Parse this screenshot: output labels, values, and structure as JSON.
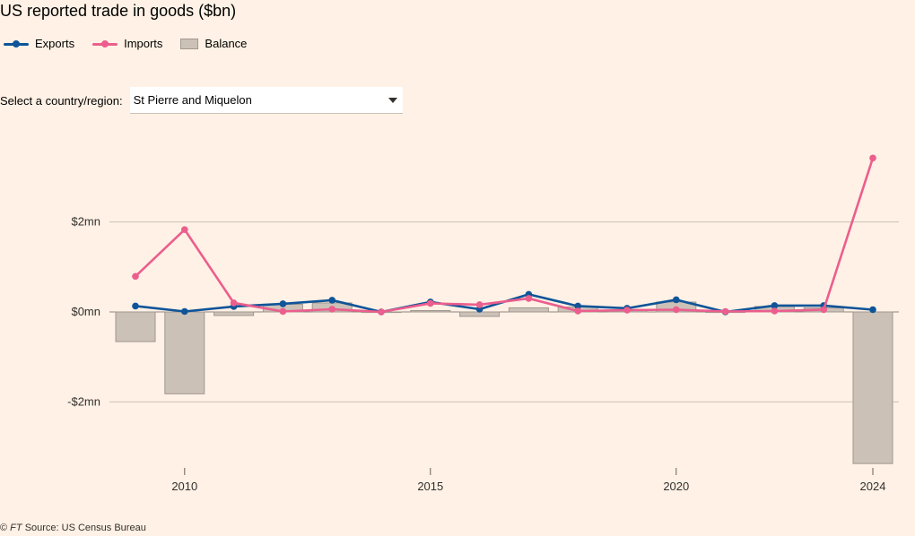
{
  "title": "US reported trade in goods ($bn)",
  "legend": {
    "exports": "Exports",
    "imports": "Imports",
    "balance": "Balance"
  },
  "selector": {
    "label": "Select a country/region:",
    "value": "St Pierre and Miquelon"
  },
  "footer": {
    "copyright": "©",
    "publisher": "FT",
    "source": "Source: US Census Bureau"
  },
  "colors": {
    "exports": "#0f5499",
    "imports": "#eb5e8d",
    "balance_fill": "#ccc1b7",
    "balance_stroke": "#a09890",
    "grid": "#ccc1b7"
  },
  "chart_data": {
    "type": "bar",
    "title": "US reported trade in goods ($bn)",
    "x": [
      2009,
      2010,
      2011,
      2012,
      2013,
      2014,
      2015,
      2016,
      2017,
      2018,
      2019,
      2020,
      2021,
      2022,
      2023,
      2024
    ],
    "xticks": [
      2010,
      2015,
      2020,
      2024
    ],
    "yticks": [
      {
        "value": 2,
        "label": "$2mn"
      },
      {
        "value": 0,
        "label": "$0mn"
      },
      {
        "value": -2,
        "label": "-$2mn"
      }
    ],
    "ylim": [
      -3.4,
      3.4
    ],
    "grid": true,
    "legend_position": "top-left",
    "series": [
      {
        "name": "Exports",
        "type": "line",
        "values": [
          0.13,
          0.01,
          0.12,
          0.18,
          0.26,
          0.0,
          0.22,
          0.06,
          0.39,
          0.13,
          0.08,
          0.27,
          0.0,
          0.14,
          0.14,
          0.05
        ]
      },
      {
        "name": "Imports",
        "type": "line",
        "values": [
          0.79,
          1.83,
          0.2,
          0.01,
          0.06,
          0.0,
          0.19,
          0.16,
          0.3,
          0.02,
          0.04,
          0.05,
          0.01,
          0.02,
          0.05,
          3.42
        ]
      },
      {
        "name": "Balance",
        "type": "bar",
        "values": [
          -0.66,
          -1.82,
          -0.08,
          0.17,
          0.2,
          0.0,
          0.03,
          -0.1,
          0.09,
          0.11,
          0.04,
          0.22,
          -0.01,
          0.12,
          0.09,
          -3.37
        ]
      }
    ]
  }
}
